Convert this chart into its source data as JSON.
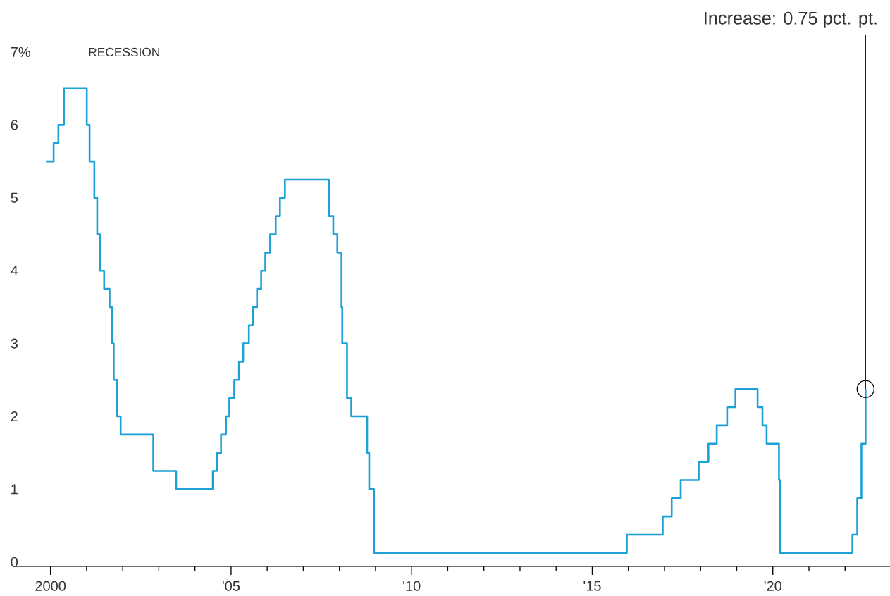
{
  "chart_data": {
    "type": "step",
    "color": "#1ba1d8",
    "line_style": "solid",
    "marker": "none",
    "x": [
      "1999-11-16",
      "2000-02-02",
      "2000-03-21",
      "2000-05-16",
      "2001-01-03",
      "2001-01-31",
      "2001-03-20",
      "2001-04-18",
      "2001-05-15",
      "2001-06-27",
      "2001-08-21",
      "2001-09-17",
      "2001-10-02",
      "2001-11-06",
      "2001-12-11",
      "2002-11-06",
      "2003-06-25",
      "2004-06-30",
      "2004-08-10",
      "2004-09-21",
      "2004-11-10",
      "2004-12-14",
      "2005-02-02",
      "2005-03-22",
      "2005-05-03",
      "2005-06-30",
      "2005-08-09",
      "2005-09-20",
      "2005-11-01",
      "2005-12-13",
      "2006-01-31",
      "2006-03-28",
      "2006-05-10",
      "2006-06-29",
      "2007-09-18",
      "2007-10-31",
      "2007-12-11",
      "2008-01-22",
      "2008-01-30",
      "2008-03-18",
      "2008-04-30",
      "2008-10-08",
      "2008-10-29",
      "2008-12-16",
      "2015-12-16",
      "2016-12-14",
      "2017-03-15",
      "2017-06-14",
      "2017-12-13",
      "2018-03-21",
      "2018-06-13",
      "2018-09-26",
      "2018-12-19",
      "2019-07-31",
      "2019-09-18",
      "2019-10-30",
      "2020-03-03",
      "2020-03-15",
      "2022-03-16",
      "2022-05-04",
      "2022-06-15",
      "2022-07-27"
    ],
    "values": [
      5.5,
      5.75,
      6.0,
      6.5,
      6.0,
      5.5,
      5.0,
      4.5,
      4.0,
      3.75,
      3.5,
      3.0,
      2.5,
      2.0,
      1.75,
      1.25,
      1.0,
      1.25,
      1.5,
      1.75,
      2.0,
      2.25,
      2.5,
      2.75,
      3.0,
      3.25,
      3.5,
      3.75,
      4.0,
      4.25,
      4.5,
      4.75,
      5.0,
      5.25,
      4.75,
      4.5,
      4.25,
      3.5,
      3.0,
      2.25,
      2.0,
      1.5,
      1.0,
      0.125,
      0.375,
      0.625,
      0.875,
      1.125,
      1.375,
      1.625,
      1.875,
      2.125,
      2.375,
      2.125,
      1.875,
      1.625,
      1.125,
      0.125,
      0.375,
      0.875,
      1.625,
      2.375
    ],
    "xlim": [
      "1998-12-15",
      "2023-03-31"
    ],
    "ylim": [
      -0.06,
      7
    ],
    "yticks": [
      0,
      1,
      2,
      3,
      4,
      5,
      6,
      {
        "value": 7,
        "label": "7%"
      }
    ],
    "xticks": [
      {
        "value": "2000",
        "label": "2000"
      },
      {
        "value": "2001",
        "label": null
      },
      {
        "value": "2002",
        "label": null
      },
      {
        "value": "2003",
        "label": null
      },
      {
        "value": "2004",
        "label": null
      },
      {
        "value": "2005",
        "label": "'05"
      },
      {
        "value": "2006",
        "label": null
      },
      {
        "value": "2007",
        "label": null
      },
      {
        "value": "2008",
        "label": null
      },
      {
        "value": "2009",
        "label": null
      },
      {
        "value": "2010",
        "label": "'10"
      },
      {
        "value": "2011",
        "label": null
      },
      {
        "value": "2012",
        "label": null
      },
      {
        "value": "2013",
        "label": null
      },
      {
        "value": "2014",
        "label": null
      },
      {
        "value": "2015",
        "label": "'15"
      },
      {
        "value": "2016",
        "label": null
      },
      {
        "value": "2017",
        "label": null
      },
      {
        "value": "2018",
        "label": null
      },
      {
        "value": "2019",
        "label": null
      },
      {
        "value": "2020",
        "label": "'20"
      },
      {
        "value": "2021",
        "label": null
      },
      {
        "value": "2022",
        "label": null
      }
    ],
    "annotations": [
      "RECESSION",
      {
        "text": "Increase: 0.75 pct. pt.",
        "x": "2022-07-27",
        "y": 2.375
      }
    ]
  }
}
